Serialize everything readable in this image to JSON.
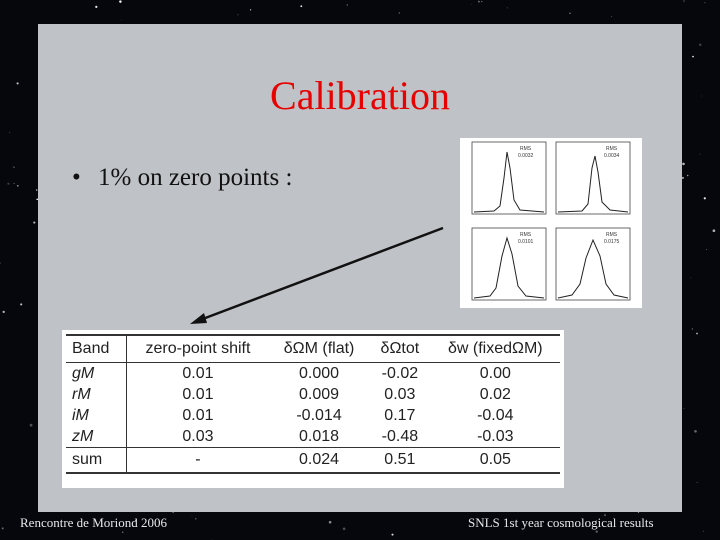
{
  "slide": {
    "title": "Calibration",
    "bullet": "1% on zero points :",
    "bullet_marker": "•"
  },
  "table": {
    "headers": [
      "Band",
      "zero-point shift",
      "δΩM (flat)",
      "δΩtot",
      "δw (fixedΩM)"
    ],
    "rows": [
      [
        "gM",
        "0.01",
        "0.000",
        "-0.02",
        "0.00"
      ],
      [
        "rM",
        "0.01",
        "0.009",
        "0.03",
        "0.02"
      ],
      [
        "iM",
        "0.01",
        "-0.014",
        "0.17",
        "-0.04"
      ],
      [
        "zM",
        "0.03",
        "0.018",
        "-0.48",
        "-0.03"
      ]
    ],
    "sum_row": [
      "sum",
      "-",
      "0.024",
      "0.51",
      "0.05"
    ]
  },
  "histograms": {
    "panels": [
      {
        "stat_label": "RMS",
        "stat_value": "0.0032"
      },
      {
        "stat_label": "RMS",
        "stat_value": "0.0034"
      },
      {
        "stat_label": "RMS",
        "stat_value": "0.0101"
      },
      {
        "stat_label": "RMS",
        "stat_value": "0.0175"
      }
    ]
  },
  "footer": {
    "left": "Rencontre de Moriond 2006",
    "right": "SNLS 1st year cosmological  results"
  },
  "colors": {
    "title": "#e60000",
    "panel": "#bfc2c6",
    "background": "#05070d"
  }
}
